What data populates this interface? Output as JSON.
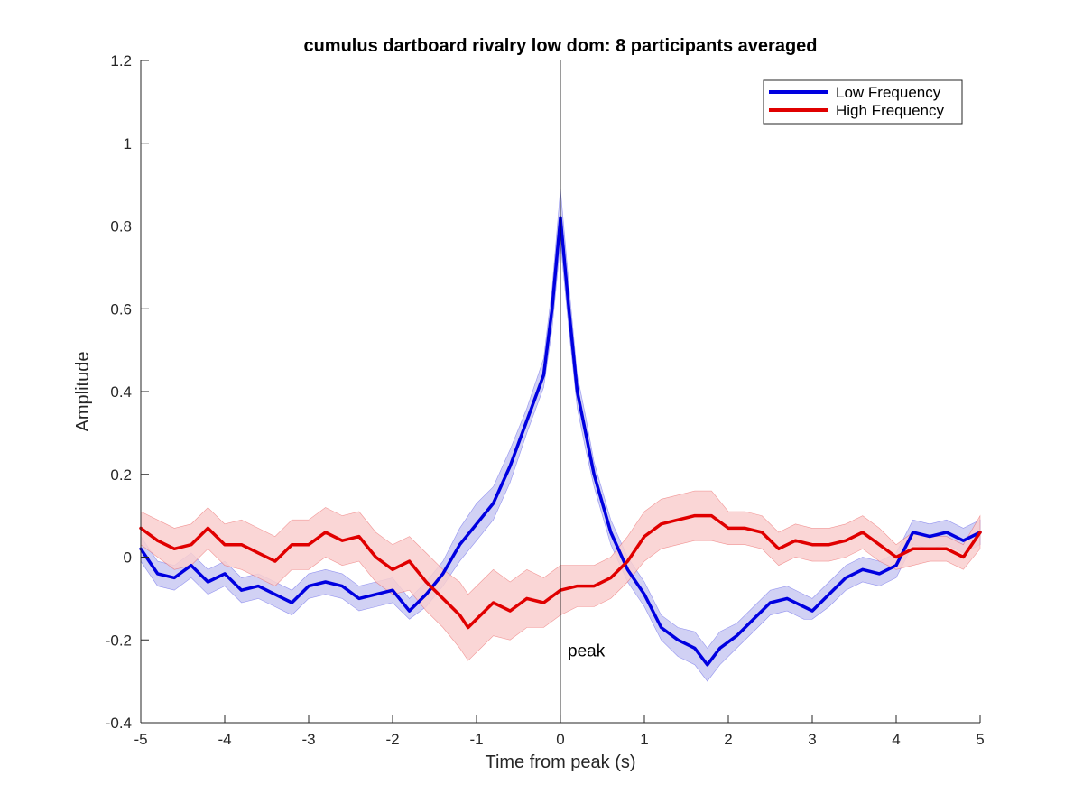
{
  "chart_data": {
    "type": "line",
    "title": "cumulus dartboard rivalry low dom: 8 participants averaged",
    "xlabel": "Time from peak (s)",
    "ylabel": "Amplitude",
    "xlim": [
      -5,
      5
    ],
    "ylim": [
      -0.4,
      1.2
    ],
    "xticks": [
      -5,
      -4,
      -3,
      -2,
      -1,
      0,
      1,
      2,
      3,
      4,
      5
    ],
    "yticks": [
      -0.4,
      -0.2,
      0,
      0.2,
      0.4,
      0.6,
      0.8,
      1,
      1.2
    ],
    "xtick_labels": [
      "-5",
      "-4",
      "-3",
      "-2",
      "-1",
      "0",
      "1",
      "2",
      "3",
      "4",
      "5"
    ],
    "ytick_labels": [
      "-0.4",
      "-0.2",
      "0",
      "0.2",
      "0.4",
      "0.6",
      "0.8",
      "1",
      "1.2"
    ],
    "grid": false,
    "legend_position": "top-right",
    "vline": {
      "x": 0,
      "label": "peak",
      "label_y": -0.24
    },
    "series": [
      {
        "name": "Low Frequency",
        "color": "#0000e0",
        "band_color": "#c9c9f2",
        "x": [
          -5,
          -4.8,
          -4.6,
          -4.4,
          -4.2,
          -4,
          -3.8,
          -3.6,
          -3.4,
          -3.2,
          -3,
          -2.8,
          -2.6,
          -2.4,
          -2.2,
          -2,
          -1.8,
          -1.6,
          -1.4,
          -1.2,
          -1,
          -0.8,
          -0.6,
          -0.4,
          -0.2,
          -0.1,
          0,
          0.1,
          0.2,
          0.3,
          0.4,
          0.5,
          0.6,
          0.8,
          1,
          1.2,
          1.4,
          1.6,
          1.75,
          1.9,
          2.1,
          2.3,
          2.5,
          2.7,
          2.9,
          3,
          3.2,
          3.4,
          3.6,
          3.8,
          4,
          4.2,
          4.4,
          4.6,
          4.8,
          5
        ],
        "y": [
          0.02,
          -0.04,
          -0.05,
          -0.02,
          -0.06,
          -0.04,
          -0.08,
          -0.07,
          -0.09,
          -0.11,
          -0.07,
          -0.06,
          -0.07,
          -0.1,
          -0.09,
          -0.08,
          -0.13,
          -0.09,
          -0.04,
          0.03,
          0.08,
          0.13,
          0.22,
          0.33,
          0.44,
          0.6,
          0.82,
          0.6,
          0.4,
          0.3,
          0.2,
          0.13,
          0.06,
          -0.03,
          -0.09,
          -0.17,
          -0.2,
          -0.22,
          -0.26,
          -0.22,
          -0.19,
          -0.15,
          -0.11,
          -0.1,
          -0.12,
          -0.13,
          -0.09,
          -0.05,
          -0.03,
          -0.04,
          -0.02,
          0.06,
          0.05,
          0.06,
          0.04,
          0.06
        ],
        "lower": [
          -0.01,
          -0.07,
          -0.08,
          -0.05,
          -0.09,
          -0.07,
          -0.11,
          -0.1,
          -0.12,
          -0.14,
          -0.1,
          -0.09,
          -0.1,
          -0.13,
          -0.12,
          -0.11,
          -0.15,
          -0.12,
          -0.07,
          -0.01,
          0.04,
          0.09,
          0.18,
          0.3,
          0.41,
          0.55,
          0.76,
          0.55,
          0.36,
          0.26,
          0.17,
          0.1,
          0.03,
          -0.06,
          -0.12,
          -0.2,
          -0.24,
          -0.26,
          -0.3,
          -0.26,
          -0.22,
          -0.18,
          -0.14,
          -0.13,
          -0.15,
          -0.15,
          -0.12,
          -0.08,
          -0.06,
          -0.07,
          -0.05,
          0.03,
          0.02,
          0.03,
          0.01,
          0.03
        ],
        "upper": [
          0.05,
          -0.01,
          -0.02,
          0.01,
          -0.03,
          -0.01,
          -0.05,
          -0.04,
          -0.06,
          -0.08,
          -0.04,
          -0.03,
          -0.04,
          -0.07,
          -0.06,
          -0.05,
          -0.1,
          -0.06,
          -0.01,
          0.07,
          0.13,
          0.17,
          0.26,
          0.36,
          0.48,
          0.65,
          0.89,
          0.66,
          0.44,
          0.34,
          0.23,
          0.16,
          0.09,
          0,
          -0.06,
          -0.14,
          -0.17,
          -0.18,
          -0.22,
          -0.18,
          -0.16,
          -0.12,
          -0.08,
          -0.07,
          -0.09,
          -0.1,
          -0.06,
          -0.02,
          0,
          -0.01,
          0.01,
          0.09,
          0.08,
          0.09,
          0.07,
          0.09
        ]
      },
      {
        "name": "High Frequency",
        "color": "#e00000",
        "band_color": "#f9cfcf",
        "x": [
          -5,
          -4.8,
          -4.6,
          -4.4,
          -4.2,
          -4,
          -3.8,
          -3.6,
          -3.4,
          -3.2,
          -3,
          -2.8,
          -2.6,
          -2.4,
          -2.2,
          -2,
          -1.8,
          -1.6,
          -1.4,
          -1.2,
          -1.1,
          -1,
          -0.8,
          -0.6,
          -0.4,
          -0.2,
          0,
          0.2,
          0.4,
          0.6,
          0.8,
          1,
          1.2,
          1.4,
          1.6,
          1.8,
          2,
          2.2,
          2.4,
          2.6,
          2.8,
          3,
          3.2,
          3.4,
          3.6,
          3.8,
          4,
          4.2,
          4.4,
          4.6,
          4.8,
          5
        ],
        "y": [
          0.07,
          0.04,
          0.02,
          0.03,
          0.07,
          0.03,
          0.03,
          0.01,
          -0.01,
          0.03,
          0.03,
          0.06,
          0.04,
          0.05,
          0.0,
          -0.03,
          -0.01,
          -0.06,
          -0.1,
          -0.14,
          -0.17,
          -0.15,
          -0.11,
          -0.13,
          -0.1,
          -0.11,
          -0.08,
          -0.07,
          -0.07,
          -0.05,
          -0.01,
          0.05,
          0.08,
          0.09,
          0.1,
          0.1,
          0.07,
          0.07,
          0.06,
          0.02,
          0.04,
          0.03,
          0.03,
          0.04,
          0.06,
          0.03,
          0.0,
          0.02,
          0.02,
          0.02,
          0.0,
          0.06
        ],
        "lower": [
          0.03,
          0.0,
          -0.03,
          -0.02,
          0.02,
          -0.02,
          -0.03,
          -0.05,
          -0.07,
          -0.03,
          -0.03,
          0.0,
          -0.02,
          -0.01,
          -0.06,
          -0.09,
          -0.08,
          -0.13,
          -0.17,
          -0.22,
          -0.25,
          -0.23,
          -0.19,
          -0.2,
          -0.17,
          -0.17,
          -0.14,
          -0.12,
          -0.12,
          -0.1,
          -0.06,
          -0.01,
          0.02,
          0.03,
          0.04,
          0.04,
          0.03,
          0.03,
          0.02,
          -0.02,
          0.0,
          -0.01,
          -0.01,
          0.0,
          0.02,
          -0.01,
          -0.03,
          -0.02,
          -0.01,
          -0.01,
          -0.03,
          0.02
        ],
        "upper": [
          0.11,
          0.09,
          0.07,
          0.08,
          0.12,
          0.08,
          0.09,
          0.07,
          0.05,
          0.09,
          0.09,
          0.12,
          0.1,
          0.11,
          0.06,
          0.03,
          0.05,
          0.01,
          -0.03,
          -0.06,
          -0.09,
          -0.07,
          -0.03,
          -0.06,
          -0.03,
          -0.05,
          -0.02,
          -0.02,
          -0.02,
          0.0,
          0.05,
          0.11,
          0.14,
          0.15,
          0.16,
          0.16,
          0.11,
          0.11,
          0.1,
          0.06,
          0.08,
          0.07,
          0.07,
          0.08,
          0.1,
          0.07,
          0.03,
          0.06,
          0.05,
          0.05,
          0.03,
          0.1
        ]
      }
    ]
  }
}
